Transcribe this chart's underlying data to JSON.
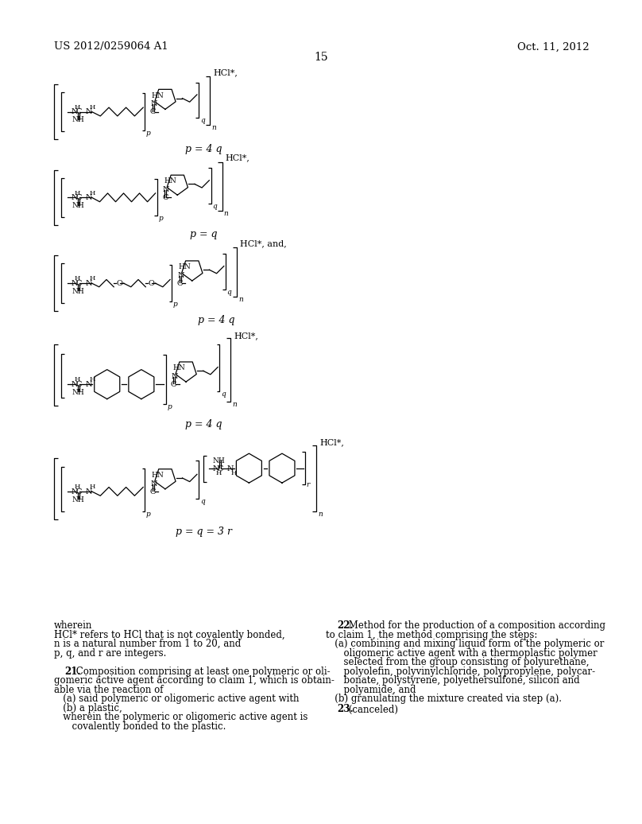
{
  "patent_number": "US 2012/0259064 A1",
  "date": "Oct. 11, 2012",
  "page_number": "15",
  "background_color": "#ffffff",
  "text_color": "#000000",
  "label1": "p = 4 q",
  "label2": "p = q",
  "label3": "p = 4 q",
  "label4": "p = 4 q",
  "label5": "p = q = 3 r",
  "hcl1": "HCl*,",
  "hcl2": "HCl*,",
  "hcl3": "HCl*, and,",
  "hcl4": "HCl*,",
  "hcl5": "HCl*,",
  "wherein_lines": [
    "wherein",
    "HCl* refers to HCl that is not covalently bonded,",
    "n is a natural number from 1 to 20, and",
    "p, q, and r are integers."
  ],
  "claim21_bold": "21.",
  "claim21_lines": [
    " Composition comprising at least one polymeric or oli-",
    "gomeric active agent according to claim 1, which is obtain-",
    "able via the reaction of",
    "   (a) said polymeric or oligomeric active agent with",
    "   (b) a plastic,",
    "   wherein the polymeric or oligomeric active agent is",
    "      covalently bonded to the plastic."
  ],
  "claim22_bold": "22.",
  "claim22_lines": [
    " Method for the production of a composition according",
    "to claim 1, the method comprising the steps:",
    "   (a) combining and mixing liquid form of the polymeric or",
    "      oligomeric active agent with a thermoplastic polymer",
    "      selected from the group consisting of polyurethane,",
    "      polyolefin, polyvinylchloride, polypropylene, polycar-",
    "      bonate, polystyrene, polyethersulfone, silicon and",
    "      polyamide, and",
    "   (b) granulating the mixture created via step (a)."
  ],
  "claim23_bold": "23.",
  "claim23_text": " (canceled)"
}
